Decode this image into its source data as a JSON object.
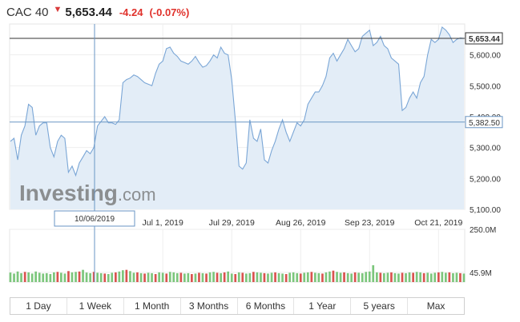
{
  "header": {
    "symbol": "CAC 40",
    "price": "5,653.44",
    "change": "-4.24",
    "change_pct": "(-0.07%)",
    "down_color": "#e0312b"
  },
  "watermark": {
    "brand": "Investing",
    "suffix": ".com"
  },
  "crosshair": {
    "date_label": "10/06/2019",
    "value_label": "5,382.50",
    "value": 5382.5
  },
  "last_price": {
    "label": "5,653.44",
    "value": 5653.44
  },
  "ranges": [
    "1 Day",
    "1 Week",
    "1 Month",
    "3 Months",
    "6 Months",
    "1 Year",
    "5 years",
    "Max"
  ],
  "chart_data": {
    "type": "area",
    "price": {
      "ylim": [
        5100,
        5700
      ],
      "yticks": [
        5100,
        5200,
        5300,
        5400,
        5500,
        5600
      ],
      "ytick_labels": [
        "5,100.00",
        "5,200.00",
        "5,300.00",
        "5,400.00",
        "5,500.00",
        "5,600.00"
      ],
      "xtick_labels": [
        "Jul 1, 2019",
        "Jul 29, 2019",
        "Aug 26, 2019",
        "Sep 23, 2019",
        "Oct 21, 2019"
      ],
      "xtick_positions": [
        42,
        61,
        80,
        99,
        118
      ],
      "x_date_count": 126,
      "values": [
        5320,
        5330,
        5260,
        5340,
        5370,
        5440,
        5430,
        5340,
        5370,
        5380,
        5380,
        5300,
        5270,
        5320,
        5340,
        5330,
        5220,
        5240,
        5210,
        5250,
        5270,
        5290,
        5280,
        5300,
        5370,
        5385,
        5400,
        5380,
        5380,
        5375,
        5390,
        5510,
        5520,
        5525,
        5535,
        5530,
        5520,
        5510,
        5505,
        5500,
        5540,
        5570,
        5580,
        5620,
        5625,
        5605,
        5595,
        5580,
        5575,
        5570,
        5580,
        5595,
        5575,
        5560,
        5565,
        5580,
        5600,
        5590,
        5625,
        5605,
        5600,
        5520,
        5390,
        5240,
        5230,
        5250,
        5390,
        5330,
        5320,
        5360,
        5260,
        5250,
        5290,
        5320,
        5360,
        5390,
        5350,
        5320,
        5350,
        5380,
        5370,
        5390,
        5440,
        5460,
        5480,
        5480,
        5500,
        5530,
        5590,
        5605,
        5580,
        5600,
        5620,
        5650,
        5630,
        5610,
        5620,
        5660,
        5670,
        5680,
        5630,
        5640,
        5660,
        5630,
        5620,
        5590,
        5580,
        5570,
        5420,
        5430,
        5460,
        5480,
        5460,
        5510,
        5530,
        5600,
        5650,
        5640,
        5650,
        5690,
        5680,
        5665,
        5640,
        5650,
        5655,
        5653.44
      ],
      "last": 5653.44,
      "current_crosshair": 5382.5
    },
    "volume": {
      "ylim": [
        0,
        250
      ],
      "ytick_labels": [
        "250.0M",
        "45.9M"
      ],
      "ytick_values": [
        250,
        45.9
      ],
      "up_color": "#7cc67c",
      "down_color": "#d9534f",
      "values": [
        45,
        40,
        50,
        42,
        48,
        46,
        40,
        50,
        44,
        40,
        42,
        38,
        46,
        48,
        44,
        40,
        52,
        46,
        48,
        50,
        58,
        45,
        42,
        48,
        44,
        42,
        40,
        38,
        44,
        46,
        50,
        56,
        58,
        52,
        44,
        46,
        42,
        40,
        44,
        42,
        38,
        46,
        44,
        40,
        48,
        46,
        42,
        44,
        40,
        42,
        38,
        40,
        44,
        42,
        40,
        46,
        48,
        44,
        42,
        46,
        50,
        40,
        38,
        46,
        44,
        40,
        42,
        48,
        46,
        44,
        42,
        40,
        44,
        46,
        42,
        40,
        38,
        44,
        46,
        42,
        40,
        44,
        46,
        48,
        44,
        42,
        40,
        46,
        50,
        54,
        48,
        44,
        46,
        42,
        40,
        46,
        44,
        42,
        48,
        50,
        80,
        46,
        44,
        42,
        44,
        46,
        42,
        40,
        44,
        42,
        46,
        44,
        48,
        46,
        42,
        44,
        40,
        44,
        46,
        48,
        44,
        46,
        42,
        44,
        42,
        40
      ],
      "up": [
        1,
        1,
        1,
        1,
        0,
        1,
        1,
        1,
        1,
        1,
        1,
        1,
        1,
        0,
        1,
        1,
        0,
        1,
        1,
        0,
        1,
        1,
        1,
        0,
        1,
        1,
        0,
        1,
        1,
        0,
        1,
        1,
        0,
        1,
        1,
        0,
        1,
        0,
        1,
        1,
        0,
        1,
        1,
        0,
        1,
        1,
        1,
        0,
        1,
        1,
        0,
        1,
        0,
        1,
        0,
        1,
        1,
        0,
        1,
        0,
        1,
        1,
        0,
        1,
        0,
        1,
        1,
        0,
        1,
        1,
        0,
        1,
        1,
        0,
        1,
        1,
        0,
        1,
        1,
        1,
        0,
        1,
        1,
        0,
        1,
        1,
        0,
        1,
        1,
        0,
        1,
        1,
        0,
        1,
        1,
        0,
        1,
        1,
        1,
        1,
        1,
        1,
        0,
        1,
        1,
        0,
        1,
        1,
        0,
        1,
        1,
        0,
        1,
        1,
        0,
        1,
        1,
        1,
        0,
        1,
        1,
        0,
        1,
        1,
        0,
        1
      ]
    }
  }
}
